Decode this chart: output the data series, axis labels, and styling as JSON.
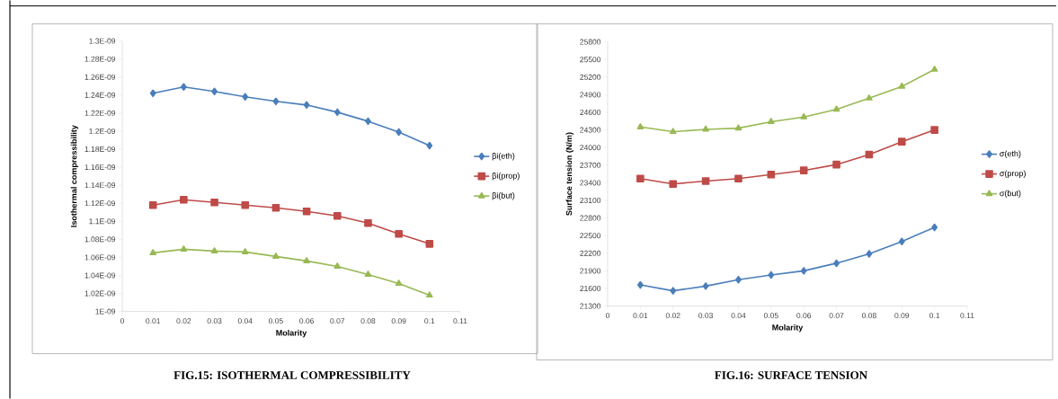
{
  "chart_data": [
    {
      "type": "line",
      "title": "FIG.15: ISOTHERMAL  COMPRESSIBILITY",
      "xlabel": "Molarity",
      "ylabel": "Isothermal compressibility",
      "x": [
        0.01,
        0.02,
        0.03,
        0.04,
        0.05,
        0.06,
        0.07,
        0.08,
        0.09,
        0.1
      ],
      "xlim": [
        0,
        0.11
      ],
      "xticks": [
        0,
        0.01,
        0.02,
        0.03,
        0.04,
        0.05,
        0.06,
        0.07,
        0.08,
        0.09,
        0.1,
        0.11
      ],
      "ylim": [
        1e-09,
        1.3e-09
      ],
      "yticks": [
        {
          "value": 1e-09,
          "label": "1E-09"
        },
        {
          "value": 1.02e-09,
          "label": "1.02E-09"
        },
        {
          "value": 1.04e-09,
          "label": "1.04E-09"
        },
        {
          "value": 1.06e-09,
          "label": "1.06E-09"
        },
        {
          "value": 1.08e-09,
          "label": "1.08E-09"
        },
        {
          "value": 1.1e-09,
          "label": "1.1E-09"
        },
        {
          "value": 1.12e-09,
          "label": "1.12E-09"
        },
        {
          "value": 1.14e-09,
          "label": "1.14E-09"
        },
        {
          "value": 1.16e-09,
          "label": "1.16E-09"
        },
        {
          "value": 1.18e-09,
          "label": "1.18E-09"
        },
        {
          "value": 1.2e-09,
          "label": "1.2E-09"
        },
        {
          "value": 1.22e-09,
          "label": "1.22E-09"
        },
        {
          "value": 1.24e-09,
          "label": "1.24E-09"
        },
        {
          "value": 1.26e-09,
          "label": "1.26E-09"
        },
        {
          "value": 1.28e-09,
          "label": "1.28E-09"
        },
        {
          "value": 1.3e-09,
          "label": "1.3E-09"
        }
      ],
      "legend": "right",
      "grid": false,
      "series": [
        {
          "name": "βi(eth)",
          "color": "#4a7ebb",
          "marker": "diamond",
          "values": [
            1.242e-09,
            1.249e-09,
            1.244e-09,
            1.238e-09,
            1.233e-09,
            1.229e-09,
            1.221e-09,
            1.211e-09,
            1.199e-09,
            1.184e-09
          ]
        },
        {
          "name": "βi(prop)",
          "color": "#be4b48",
          "marker": "square",
          "values": [
            1.118e-09,
            1.124e-09,
            1.121e-09,
            1.118e-09,
            1.115e-09,
            1.111e-09,
            1.106e-09,
            1.098e-09,
            1.086e-09,
            1.075e-09
          ]
        },
        {
          "name": "βi(but)",
          "color": "#98b954",
          "marker": "triangle",
          "values": [
            1.065e-09,
            1.069e-09,
            1.067e-09,
            1.066e-09,
            1.061e-09,
            1.056e-09,
            1.05e-09,
            1.041e-09,
            1.031e-09,
            1.018e-09
          ]
        }
      ]
    },
    {
      "type": "line",
      "title": "FIG.16: SURFACE  TENSION",
      "xlabel": "Molarity",
      "ylabel": "Surface tension (N/m)",
      "x": [
        0.01,
        0.02,
        0.03,
        0.04,
        0.05,
        0.06,
        0.07,
        0.08,
        0.09,
        0.1
      ],
      "xlim": [
        0,
        0.11
      ],
      "xticks": [
        0,
        0.01,
        0.02,
        0.03,
        0.04,
        0.05,
        0.06,
        0.07,
        0.08,
        0.09,
        0.1,
        0.11
      ],
      "ylim": [
        21300,
        25800
      ],
      "yticks": [
        21300,
        21600,
        21900,
        22200,
        22500,
        22800,
        23100,
        23400,
        23700,
        24000,
        24300,
        24600,
        24900,
        25200,
        25500,
        25800
      ],
      "legend": "right",
      "grid": false,
      "series": [
        {
          "name": "σ(eth)",
          "color": "#4a7ebb",
          "marker": "diamond",
          "values": [
            21660,
            21560,
            21640,
            21750,
            21830,
            21900,
            22030,
            22190,
            22400,
            22640
          ]
        },
        {
          "name": "σ(prop)",
          "color": "#be4b48",
          "marker": "square",
          "values": [
            23470,
            23380,
            23430,
            23470,
            23540,
            23610,
            23710,
            23880,
            24100,
            24300
          ]
        },
        {
          "name": "σ(but)",
          "color": "#98b954",
          "marker": "triangle",
          "values": [
            24350,
            24270,
            24310,
            24330,
            24440,
            24520,
            24650,
            24840,
            25040,
            25330
          ]
        }
      ]
    }
  ]
}
